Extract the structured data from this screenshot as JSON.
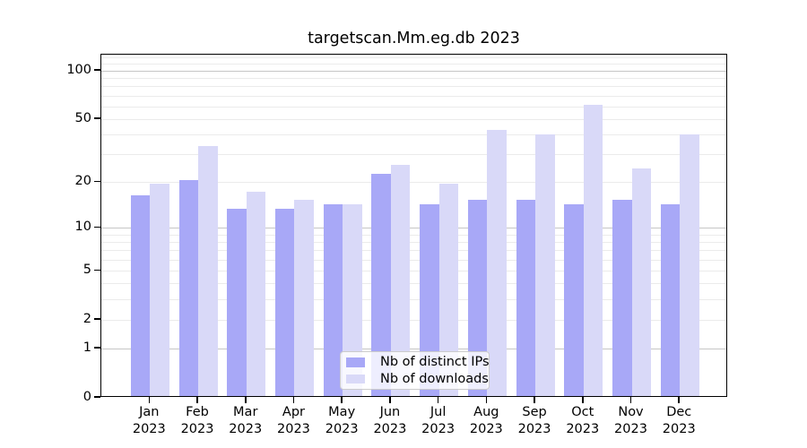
{
  "figure": {
    "title": "targetscan.Mm.eg.db 2023"
  },
  "chart_data": {
    "type": "bar",
    "title": "targetscan.Mm.eg.db 2023",
    "categories": [
      "Jan 2023",
      "Feb 2023",
      "Mar 2023",
      "Apr 2023",
      "May 2023",
      "Jun 2023",
      "Jul 2023",
      "Aug 2023",
      "Sep 2023",
      "Oct 2023",
      "Nov 2023",
      "Dec 2023"
    ],
    "month_labels": [
      "Jan",
      "Feb",
      "Mar",
      "Apr",
      "May",
      "Jun",
      "Jul",
      "Aug",
      "Sep",
      "Oct",
      "Nov",
      "Dec"
    ],
    "year_label": "2023",
    "series": [
      {
        "name": "Nb of distinct IPs",
        "color": "#a8a8f7",
        "values": [
          16,
          20,
          13,
          13,
          14,
          22,
          14,
          15,
          15,
          14,
          15,
          14
        ]
      },
      {
        "name": "Nb of downloads",
        "color": "#d9d9f8",
        "values": [
          19,
          33,
          17,
          15,
          14,
          25,
          19,
          42,
          39,
          60,
          24,
          39
        ]
      }
    ],
    "xlabel": "",
    "ylabel": "",
    "y_axis": {
      "scale": "log10(value+1)",
      "tick_values": [
        100,
        50,
        20,
        10,
        5,
        2,
        1,
        0
      ],
      "major_gridlines": [
        1,
        10,
        100
      ],
      "minor_gridlines": [
        2,
        3,
        4,
        5,
        6,
        7,
        8,
        9,
        20,
        30,
        40,
        50,
        60,
        70,
        80,
        90,
        110,
        120
      ],
      "ylim": [
        0,
        130
      ]
    },
    "grid": true,
    "legend": {
      "position": "inside-bottom-center",
      "items": [
        "Nb of distinct IPs",
        "Nb of downloads"
      ]
    }
  }
}
